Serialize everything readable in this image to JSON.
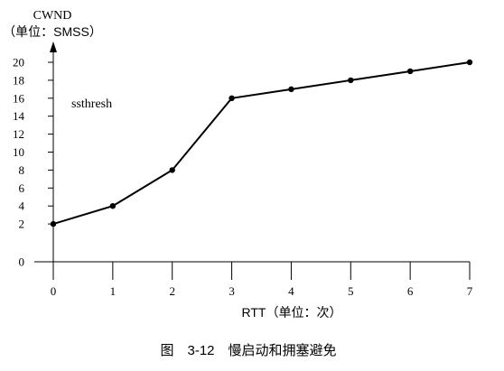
{
  "chart_data": {
    "type": "line",
    "ylabel_line1": "CWND",
    "ylabel_line2": "（单位：SMSS）",
    "xlabel": "RTT（单位：次）",
    "annotation": "ssthresh",
    "caption": "图　3-12　慢启动和拥塞避免",
    "x_ticks": [
      "0",
      "1",
      "2",
      "3",
      "4",
      "5",
      "6",
      "7"
    ],
    "y_ticks": [
      "0",
      "2",
      "4",
      "6",
      "8",
      "10",
      "12",
      "14",
      "16",
      "18",
      "20"
    ],
    "xlim": [
      0,
      7
    ],
    "ylim": [
      0,
      20
    ],
    "grid": false,
    "legend": "none",
    "series": [
      {
        "x": [
          0,
          1,
          2,
          3,
          4,
          5,
          6,
          7
        ],
        "values": [
          2,
          4,
          8,
          16,
          17,
          18,
          19,
          20
        ]
      }
    ]
  }
}
